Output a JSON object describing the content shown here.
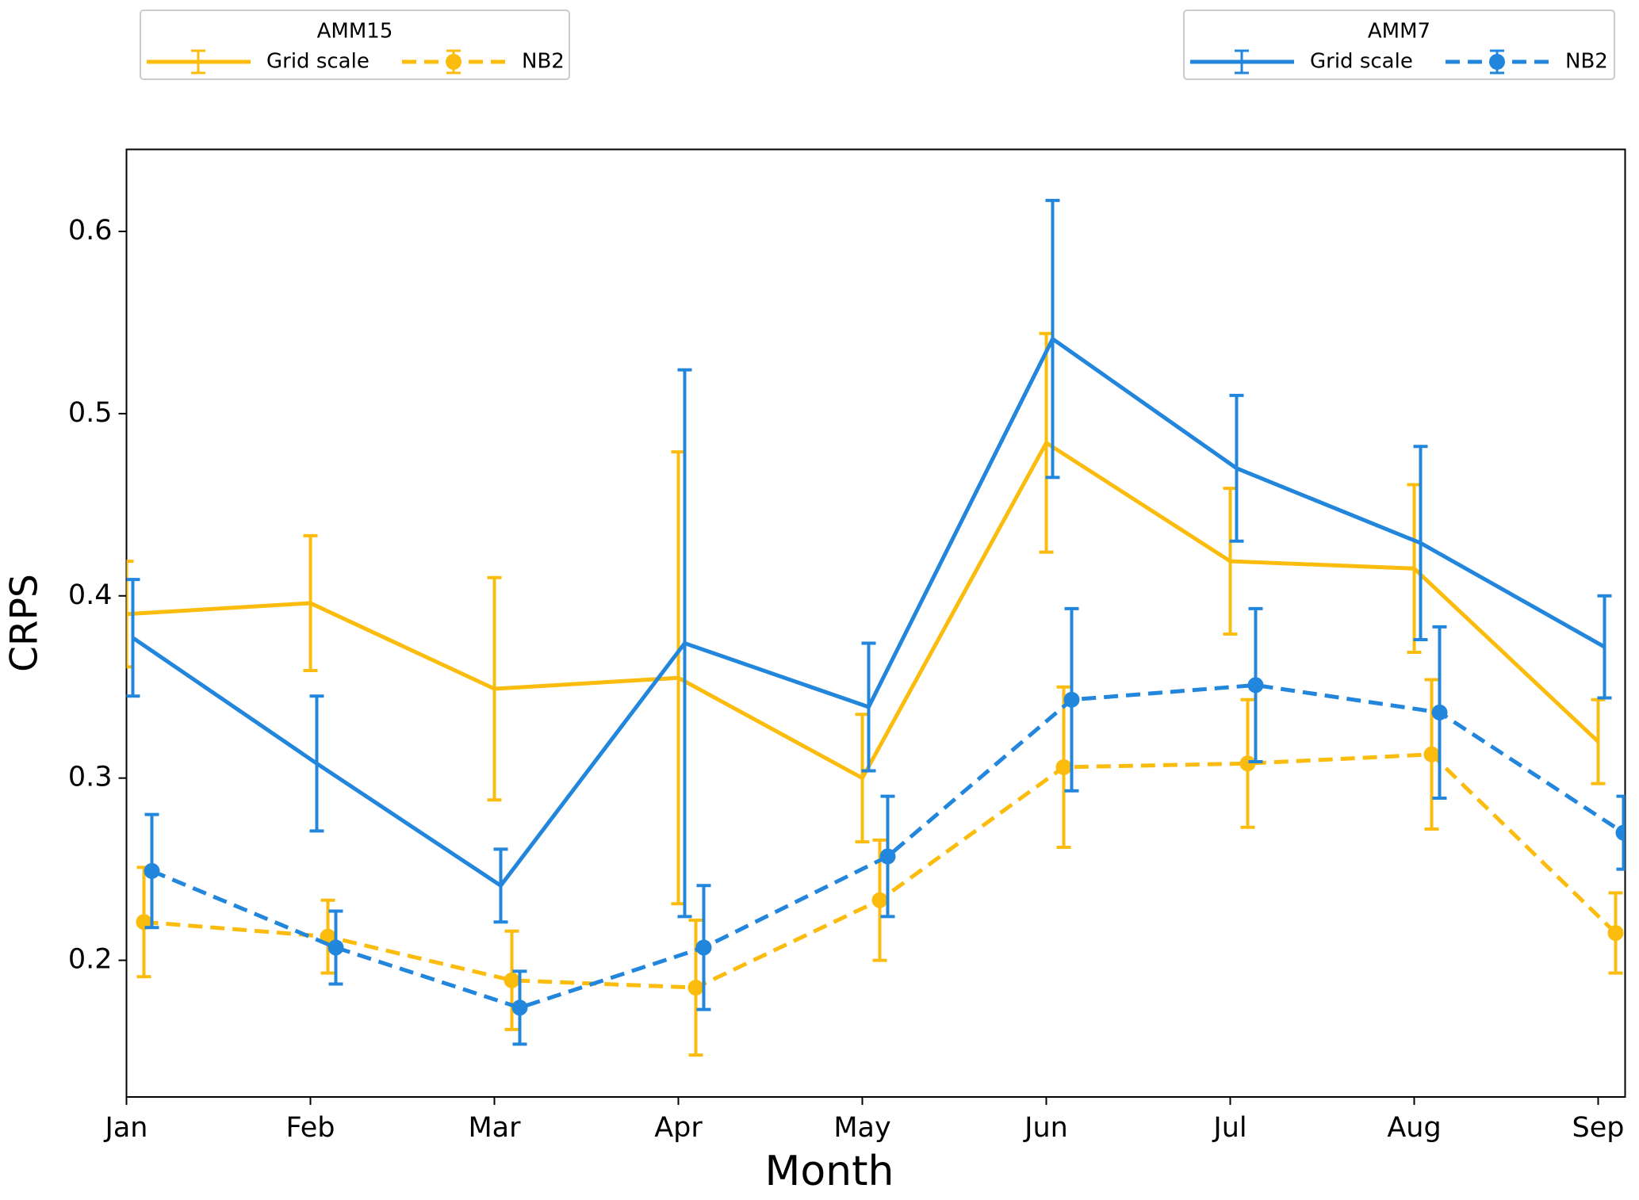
{
  "chart_data": {
    "type": "line",
    "x_label": "Month",
    "y_label": "CRPS",
    "categories": [
      "Jan",
      "Feb",
      "Mar",
      "Apr",
      "May",
      "Jun",
      "Jul",
      "Aug",
      "Sep"
    ],
    "ylim": [
      0.125,
      0.645
    ],
    "yticks": [
      0.2,
      0.3,
      0.4,
      0.5,
      0.6
    ],
    "grid": false,
    "series": [
      {
        "group": "AMM15",
        "name": "Grid scale",
        "color": "#fbbc0e",
        "linestyle": "solid",
        "marker": false,
        "values": [
          0.39,
          0.396,
          0.349,
          0.355,
          0.3,
          0.484,
          0.419,
          0.415,
          0.32
        ],
        "errors": [
          0.029,
          0.037,
          0.061,
          0.124,
          0.035,
          0.06,
          0.04,
          0.046,
          0.023
        ]
      },
      {
        "group": "AMM7",
        "name": "Grid scale",
        "color": "#2186dc",
        "linestyle": "solid",
        "marker": false,
        "values": [
          0.377,
          0.308,
          0.241,
          0.374,
          0.339,
          0.541,
          0.47,
          0.429,
          0.372
        ],
        "errors": [
          0.032,
          0.037,
          0.02,
          0.15,
          0.035,
          0.076,
          0.04,
          0.053,
          0.028
        ]
      },
      {
        "group": "AMM15",
        "name": "NB2",
        "color": "#fbbc0e",
        "linestyle": "dashed",
        "marker": true,
        "values": [
          0.221,
          0.213,
          0.189,
          0.185,
          0.233,
          0.306,
          0.308,
          0.313,
          0.215
        ],
        "errors": [
          0.03,
          0.02,
          0.027,
          0.037,
          0.033,
          0.044,
          0.035,
          0.041,
          0.022
        ]
      },
      {
        "group": "AMM7",
        "name": "NB2",
        "color": "#2186dc",
        "linestyle": "dashed",
        "marker": true,
        "values": [
          0.249,
          0.207,
          0.174,
          0.207,
          0.257,
          0.343,
          0.351,
          0.336,
          0.27
        ],
        "errors": [
          0.031,
          0.02,
          0.02,
          0.034,
          0.033,
          0.05,
          0.042,
          0.047,
          0.02
        ]
      }
    ]
  }
}
